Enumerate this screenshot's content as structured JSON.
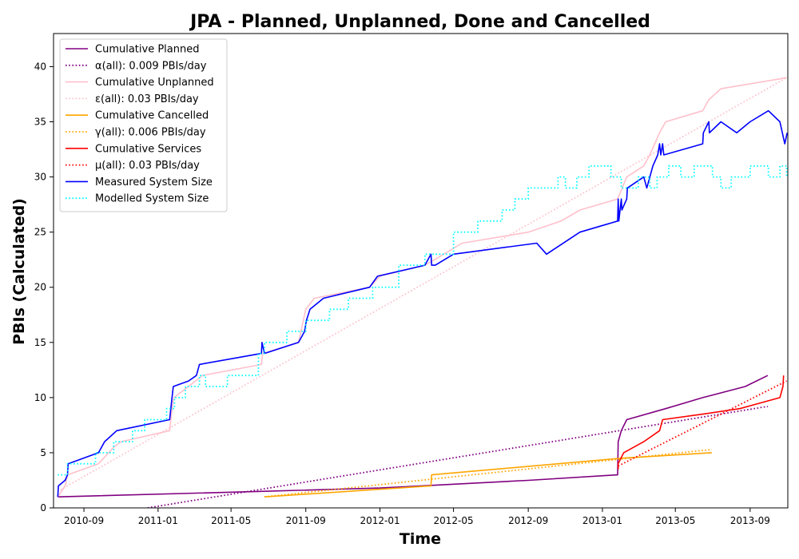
{
  "chart_data": {
    "type": "line",
    "title": "JPA - Planned, Unplanned, Done  and Cancelled",
    "xlabel": "Time",
    "ylabel": "PBIs (Calculated)",
    "x_axis_type": "date",
    "xlim": [
      "2010-07-13",
      "2013-11-02"
    ],
    "ylim": [
      0,
      43
    ],
    "x_ticks": [
      "2010-09",
      "2011-01",
      "2011-05",
      "2011-09",
      "2012-01",
      "2012-05",
      "2012-09",
      "2013-01",
      "2013-05",
      "2013-09"
    ],
    "y_ticks": [
      0,
      5,
      10,
      15,
      20,
      25,
      30,
      35,
      40
    ],
    "grid": false,
    "legend_position": "top-left",
    "series": [
      {
        "name": "Cumulative Planned",
        "color": "#800080",
        "style": "solid",
        "points": [
          [
            "2010-07-20",
            1
          ],
          [
            "2011-06-20",
            1.5
          ],
          [
            "2012-01-01",
            1.8
          ],
          [
            "2012-09-01",
            2.5
          ],
          [
            "2013-01-26",
            3
          ],
          [
            "2013-01-27",
            6
          ],
          [
            "2013-02-01",
            7
          ],
          [
            "2013-02-10",
            8
          ],
          [
            "2013-04-15",
            9
          ],
          [
            "2013-06-15",
            10
          ],
          [
            "2013-08-24",
            11
          ],
          [
            "2013-09-30",
            12
          ]
        ]
      },
      {
        "name": "α(all): 0.009 PBIs/day",
        "color": "#800080",
        "style": "dotted",
        "points": [
          [
            "2010-12-15",
            0
          ],
          [
            "2013-09-30",
            9.2
          ]
        ]
      },
      {
        "name": "Cumulative Unplanned",
        "color": "#ffc0cb",
        "style": "solid",
        "points": [
          [
            "2010-07-20",
            1
          ],
          [
            "2010-08-01",
            2
          ],
          [
            "2010-08-05",
            3
          ],
          [
            "2010-09-25",
            4
          ],
          [
            "2010-10-20",
            5.5
          ],
          [
            "2010-11-01",
            6
          ],
          [
            "2011-01-20",
            7
          ],
          [
            "2011-01-24",
            9
          ],
          [
            "2011-01-27",
            10
          ],
          [
            "2011-02-20",
            11
          ],
          [
            "2011-03-15",
            12
          ],
          [
            "2011-06-20",
            13
          ],
          [
            "2011-06-22",
            14
          ],
          [
            "2011-08-20",
            15
          ],
          [
            "2011-09-01",
            18
          ],
          [
            "2011-09-15",
            19
          ],
          [
            "2011-12-15",
            20
          ],
          [
            "2012-01-01",
            21
          ],
          [
            "2012-03-15",
            22
          ],
          [
            "2012-04-15",
            23
          ],
          [
            "2012-05-15",
            24
          ],
          [
            "2012-09-01",
            25
          ],
          [
            "2012-10-25",
            26
          ],
          [
            "2012-11-25",
            27
          ],
          [
            "2013-01-26",
            28
          ],
          [
            "2013-02-10",
            30
          ],
          [
            "2013-03-10",
            31
          ],
          [
            "2013-03-20",
            32
          ],
          [
            "2013-04-05",
            34
          ],
          [
            "2013-04-15",
            35
          ],
          [
            "2013-06-15",
            36
          ],
          [
            "2013-06-25",
            37
          ],
          [
            "2013-07-15",
            38
          ],
          [
            "2013-10-31",
            39
          ]
        ]
      },
      {
        "name": "ε(all): 0.03 PBIs/day",
        "color": "#ffc0cb",
        "style": "dotted",
        "points": [
          [
            "2010-07-20",
            1.5
          ],
          [
            "2013-10-31",
            39
          ]
        ]
      },
      {
        "name": "Cumulative Cancelled",
        "color": "#ffa500",
        "style": "solid",
        "points": [
          [
            "2011-06-25",
            1
          ],
          [
            "2012-03-25",
            2
          ],
          [
            "2012-03-26",
            3
          ],
          [
            "2013-02-01",
            4.5
          ],
          [
            "2013-06-30",
            5
          ]
        ]
      },
      {
        "name": "γ(all): 0.006 PBIs/day",
        "color": "#ffa500",
        "style": "dotted",
        "points": [
          [
            "2011-06-25",
            1
          ],
          [
            "2013-06-30",
            5.3
          ]
        ]
      },
      {
        "name": "Cumulative Services",
        "color": "#ff0000",
        "style": "solid",
        "points": [
          [
            "2013-01-27",
            3.5
          ],
          [
            "2013-01-27",
            4
          ],
          [
            "2013-02-05",
            5
          ],
          [
            "2013-03-10",
            6
          ],
          [
            "2013-04-05",
            7
          ],
          [
            "2013-04-10",
            8
          ],
          [
            "2013-06-15",
            8.5
          ],
          [
            "2013-08-15",
            9
          ],
          [
            "2013-10-20",
            10
          ],
          [
            "2013-10-25",
            11
          ],
          [
            "2013-10-26",
            12
          ]
        ]
      },
      {
        "name": "μ(all): 0.03 PBIs/day",
        "color": "#ff0000",
        "style": "dotted",
        "points": [
          [
            "2013-01-27",
            3.8
          ],
          [
            "2013-10-31",
            11.5
          ]
        ]
      },
      {
        "name": "Measured System Size",
        "color": "#0000ff",
        "style": "solid",
        "points": [
          [
            "2010-07-20",
            1
          ],
          [
            "2010-07-21",
            2
          ],
          [
            "2010-08-01",
            2.5
          ],
          [
            "2010-08-05",
            3
          ],
          [
            "2010-08-06",
            4
          ],
          [
            "2010-09-25",
            5
          ],
          [
            "2010-10-05",
            6
          ],
          [
            "2010-10-25",
            7
          ],
          [
            "2011-01-20",
            8
          ],
          [
            "2011-01-24",
            10
          ],
          [
            "2011-01-26",
            11
          ],
          [
            "2011-02-20",
            11.5
          ],
          [
            "2011-03-05",
            12
          ],
          [
            "2011-03-10",
            13
          ],
          [
            "2011-06-20",
            14
          ],
          [
            "2011-06-21",
            15
          ],
          [
            "2011-06-25",
            14
          ],
          [
            "2011-08-20",
            15
          ],
          [
            "2011-08-30",
            16
          ],
          [
            "2011-09-02",
            17
          ],
          [
            "2011-09-08",
            18
          ],
          [
            "2011-09-30",
            19
          ],
          [
            "2011-12-15",
            20
          ],
          [
            "2011-12-28",
            21
          ],
          [
            "2012-03-15",
            22
          ],
          [
            "2012-03-25",
            23
          ],
          [
            "2012-03-26",
            22
          ],
          [
            "2012-04-01",
            22
          ],
          [
            "2012-05-01",
            23
          ],
          [
            "2012-09-15",
            24
          ],
          [
            "2012-10-01",
            23
          ],
          [
            "2012-11-25",
            25
          ],
          [
            "2013-01-26",
            26
          ],
          [
            "2013-01-27",
            28
          ],
          [
            "2013-01-28",
            26
          ],
          [
            "2013-02-01",
            28
          ],
          [
            "2013-02-02",
            27
          ],
          [
            "2013-02-10",
            28
          ],
          [
            "2013-02-11",
            29
          ],
          [
            "2013-03-10",
            30
          ],
          [
            "2013-03-15",
            29
          ],
          [
            "2013-03-25",
            31
          ],
          [
            "2013-04-02",
            32
          ],
          [
            "2013-04-05",
            33
          ],
          [
            "2013-04-07",
            32
          ],
          [
            "2013-04-10",
            33
          ],
          [
            "2013-04-12",
            32
          ],
          [
            "2013-06-15",
            33
          ],
          [
            "2013-06-16",
            34
          ],
          [
            "2013-06-25",
            35
          ],
          [
            "2013-06-26",
            34
          ],
          [
            "2013-07-15",
            35
          ],
          [
            "2013-08-10",
            34
          ],
          [
            "2013-09-01",
            35
          ],
          [
            "2013-10-01",
            36
          ],
          [
            "2013-10-20",
            35
          ],
          [
            "2013-10-28",
            33
          ],
          [
            "2013-11-01",
            34
          ]
        ]
      },
      {
        "name": "Modelled System Size",
        "color": "#00ffff",
        "style": "dotted",
        "step": true,
        "points": [
          [
            "2010-07-20",
            3
          ],
          [
            "2010-08-05",
            4
          ],
          [
            "2010-09-20",
            5
          ],
          [
            "2010-10-20",
            6
          ],
          [
            "2010-11-20",
            7
          ],
          [
            "2010-12-10",
            8
          ],
          [
            "2011-01-15",
            9
          ],
          [
            "2011-01-28",
            10
          ],
          [
            "2011-02-15",
            11
          ],
          [
            "2011-03-10",
            12
          ],
          [
            "2011-03-20",
            11
          ],
          [
            "2011-04-25",
            12
          ],
          [
            "2011-06-15",
            14
          ],
          [
            "2011-06-25",
            15
          ],
          [
            "2011-08-01",
            16
          ],
          [
            "2011-09-01",
            17
          ],
          [
            "2011-10-10",
            18
          ],
          [
            "2011-11-10",
            19
          ],
          [
            "2011-12-20",
            20
          ],
          [
            "2012-02-01",
            22
          ],
          [
            "2012-03-15",
            23
          ],
          [
            "2012-04-01",
            23
          ],
          [
            "2012-05-01",
            25
          ],
          [
            "2012-06-10",
            26
          ],
          [
            "2012-07-20",
            27
          ],
          [
            "2012-08-10",
            28
          ],
          [
            "2012-09-01",
            29
          ],
          [
            "2012-10-20",
            30
          ],
          [
            "2012-11-01",
            29
          ],
          [
            "2012-11-20",
            30
          ],
          [
            "2012-12-10",
            31
          ],
          [
            "2013-01-15",
            30
          ],
          [
            "2013-02-01",
            29
          ],
          [
            "2013-03-01",
            30
          ],
          [
            "2013-03-20",
            29
          ],
          [
            "2013-04-01",
            30
          ],
          [
            "2013-04-20",
            31
          ],
          [
            "2013-05-10",
            30
          ],
          [
            "2013-06-01",
            31
          ],
          [
            "2013-07-01",
            30
          ],
          [
            "2013-07-15",
            29
          ],
          [
            "2013-08-01",
            30
          ],
          [
            "2013-09-01",
            31
          ],
          [
            "2013-10-01",
            30
          ],
          [
            "2013-10-20",
            31
          ],
          [
            "2013-10-31",
            30
          ]
        ]
      }
    ]
  }
}
